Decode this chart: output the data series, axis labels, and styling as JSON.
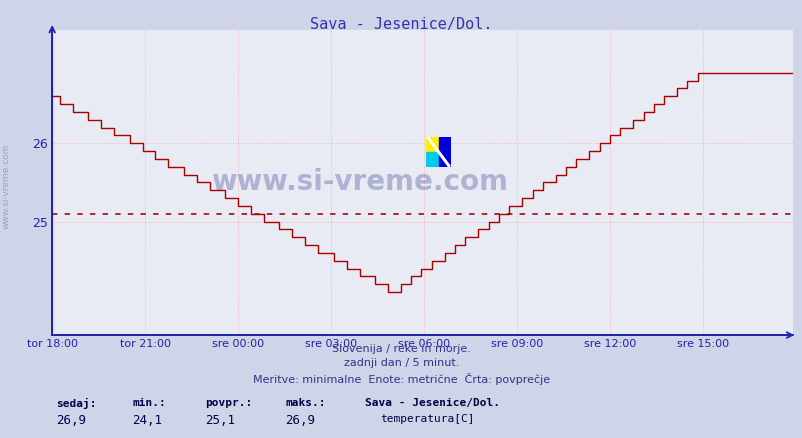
{
  "title": "Sava - Jesenice/Dol.",
  "title_color": "#3333aa",
  "bg_color": "#d0d4e8",
  "plot_bg_color": "#e8eaf4",
  "grid_color": "#ffaaaa",
  "axis_color": "#2222aa",
  "line_color": "#aa0000",
  "avg_value": 25.1,
  "min_value": 24.1,
  "max_value": 26.9,
  "current_value": 26.9,
  "yticks": [
    25,
    26
  ],
  "ylim_min": 23.55,
  "ylim_max": 27.45,
  "footer_line1": "Slovenija / reke in morje.",
  "footer_line2": "zadnji dan / 5 minut.",
  "footer_line3": "Meritve: minimalne  Enote: metrične  Črta: povprečje",
  "footer_color": "#333388",
  "legend_title": "Sava - Jesenice/Dol.",
  "legend_label": "temperatura[C]",
  "legend_color": "#aa0000",
  "stat_labels": [
    "sedaj:",
    "min.:",
    "povpr.:",
    "maks.:"
  ],
  "stat_values": [
    "26,9",
    "24,1",
    "25,1",
    "26,9"
  ],
  "watermark": "www.si-vreme.com",
  "watermark_color": "#1a237e",
  "xtick_labels": [
    "tor 18:00",
    "tor 21:00",
    "sre 00:00",
    "sre 03:00",
    "sre 06:00",
    "sre 09:00",
    "sre 12:00",
    "sre 15:00"
  ],
  "n_points": 288
}
